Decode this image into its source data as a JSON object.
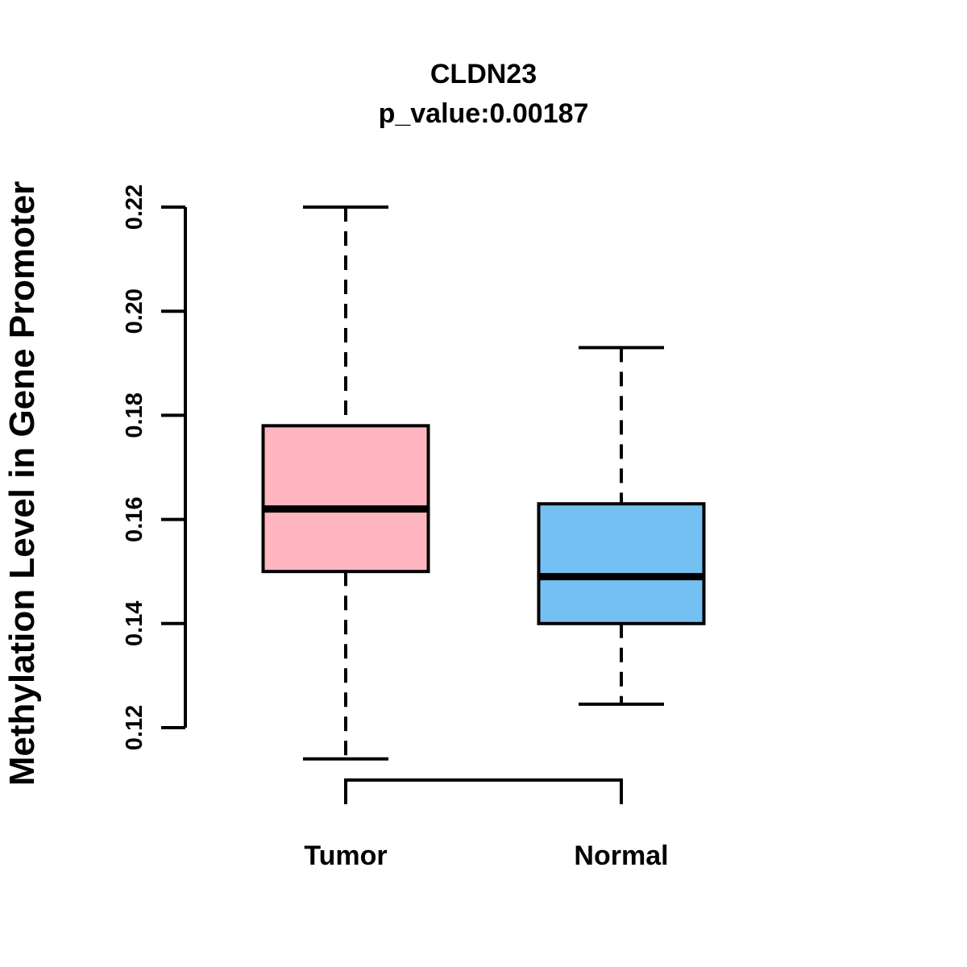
{
  "chart_data": {
    "type": "boxplot",
    "title": "CLDN23",
    "subtitle": "p_value:0.00187",
    "ylabel": "Methylation Level in Gene Promoter",
    "xlabel": "",
    "ylim": [
      0.12,
      0.22
    ],
    "y_ticks": [
      0.12,
      0.14,
      0.16,
      0.18,
      0.2,
      0.22
    ],
    "y_tick_labels": [
      "0.12",
      "0.14",
      "0.16",
      "0.18",
      "0.20",
      "0.22"
    ],
    "categories": [
      "Tumor",
      "Normal"
    ],
    "series": [
      {
        "name": "Tumor",
        "min": 0.114,
        "q1": 0.15,
        "median": 0.162,
        "q3": 0.178,
        "max": 0.22,
        "fill": "#FFB6C1"
      },
      {
        "name": "Normal",
        "min": 0.1245,
        "q1": 0.14,
        "median": 0.149,
        "q3": 0.163,
        "max": 0.193,
        "fill": "#74C0F2"
      }
    ],
    "style": {
      "stroke_color": "#000000",
      "background": "#FFFFFF",
      "whisker_line_style": "dashed",
      "cap_line_style": "solid",
      "median_line": "thick"
    },
    "grid": false,
    "legend_position": "none",
    "outliers": []
  }
}
